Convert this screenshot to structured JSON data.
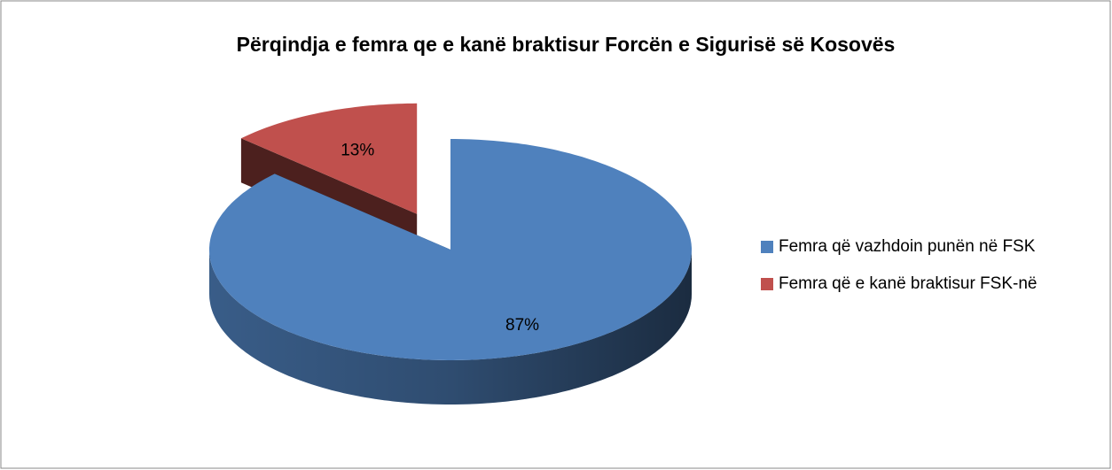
{
  "chart_data": {
    "type": "pie",
    "title": "Përqindja e femra qe e kanë braktisur Forcën e Sigurisë së Kosovës",
    "categories": [
      "Femra që vazhdoin punën në FSK",
      "Femra që e kanë braktisur FSK-në"
    ],
    "values": [
      87,
      13
    ],
    "value_labels": [
      "87%",
      "13%"
    ],
    "colors": [
      "#4f81bd",
      "#c0504d"
    ],
    "legend": "right"
  }
}
